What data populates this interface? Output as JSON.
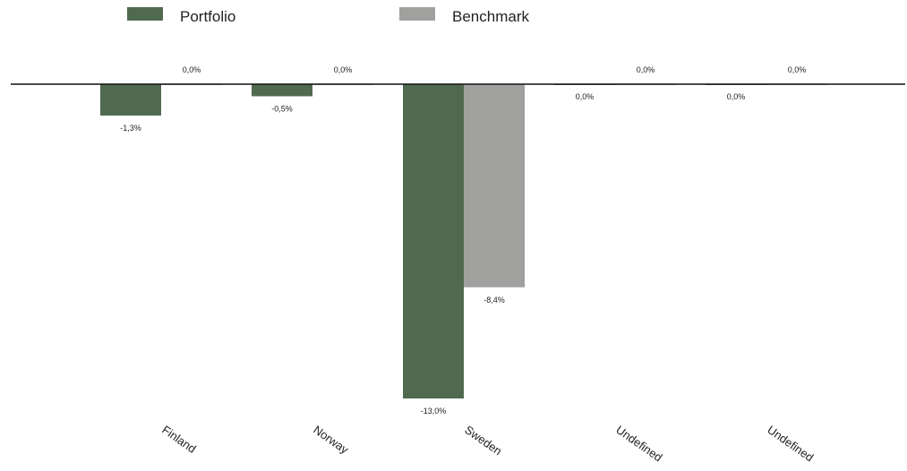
{
  "chart_data": {
    "type": "bar",
    "title": "",
    "xlabel": "",
    "ylabel": "",
    "categories": [
      "Finland",
      "Norway",
      "Sweden",
      "Undefined",
      "Undefined"
    ],
    "series": [
      {
        "name": "Portfolio",
        "color": "#506a50",
        "values": [
          -1.3,
          -0.5,
          -13.0,
          0.0,
          0.0
        ],
        "labels": [
          "-1,3%",
          "-0,5%",
          "-13,0%",
          "0,0%",
          "0,0%"
        ]
      },
      {
        "name": "Benchmark",
        "color": "#a0a09f",
        "values": [
          0.0,
          0.0,
          -8.4,
          0.0,
          0.0
        ],
        "labels": [
          "0,0%",
          "0,0%",
          "-8,4%",
          "0,0%",
          "0,0%"
        ]
      }
    ],
    "ylim": [
      -13.0,
      0.0
    ],
    "grid": false,
    "legend_position": "top-left"
  }
}
